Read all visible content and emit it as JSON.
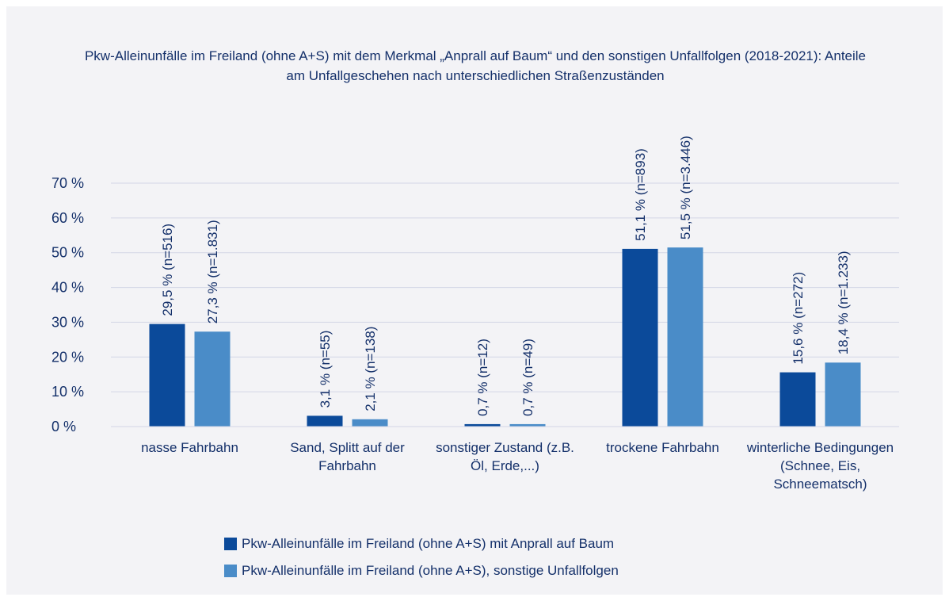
{
  "chart_data": {
    "type": "bar",
    "title": "Pkw-Alleinunfälle im Freiland (ohne A+S) mit dem Merkmal „Anprall auf Baum“ und den sonstigen Unfallfolgen (2018-2021): Anteile am Unfallgeschehen nach unterschiedlichen Straßenzuständen",
    "categories": [
      "nasse Fahrbahn",
      "Sand, Splitt auf der Fahrbahn",
      "sonstiger Zustand (z.B. Öl, Erde,...)",
      "trockene Fahrbahn",
      "winterliche Bedingungen (Schnee, Eis, Schneematsch)"
    ],
    "series": [
      {
        "name": "Pkw-Alleinunfälle im Freiland (ohne A+S) mit Anprall auf Baum",
        "color": "#0b4a9a",
        "values": [
          29.5,
          3.1,
          0.7,
          51.1,
          15.6
        ],
        "value_labels": [
          "29,5 %  (n=516)",
          "3,1 %  (n=55)",
          "0,7 %  (n=12)",
          "51,1 %  (n=893)",
          "15,6 %  (n=272)"
        ]
      },
      {
        "name": "Pkw-Alleinunfälle im Freiland (ohne A+S), sonstige Unfallfolgen",
        "color": "#4a8cc8",
        "values": [
          27.3,
          2.1,
          0.7,
          51.5,
          18.4
        ],
        "value_labels": [
          "27,3 %  (n=1.831)",
          "2,1 %  (n=138)",
          "0,7 %  (n=49)",
          "51,5 %  (n=3.446)",
          "18,4 % (n=1.233)"
        ]
      }
    ],
    "ylim": [
      0,
      70
    ],
    "yticks": [
      {
        "value": 0,
        "label": "0 %"
      },
      {
        "value": 10,
        "label": "10 %"
      },
      {
        "value": 20,
        "label": "20 %"
      },
      {
        "value": 30,
        "label": "30 %"
      },
      {
        "value": 40,
        "label": "40 %"
      },
      {
        "value": 50,
        "label": "50 %"
      },
      {
        "value": 60,
        "label": "60 %"
      },
      {
        "value": 70,
        "label": "70 %"
      }
    ],
    "grid": true,
    "legend": "bottom"
  }
}
